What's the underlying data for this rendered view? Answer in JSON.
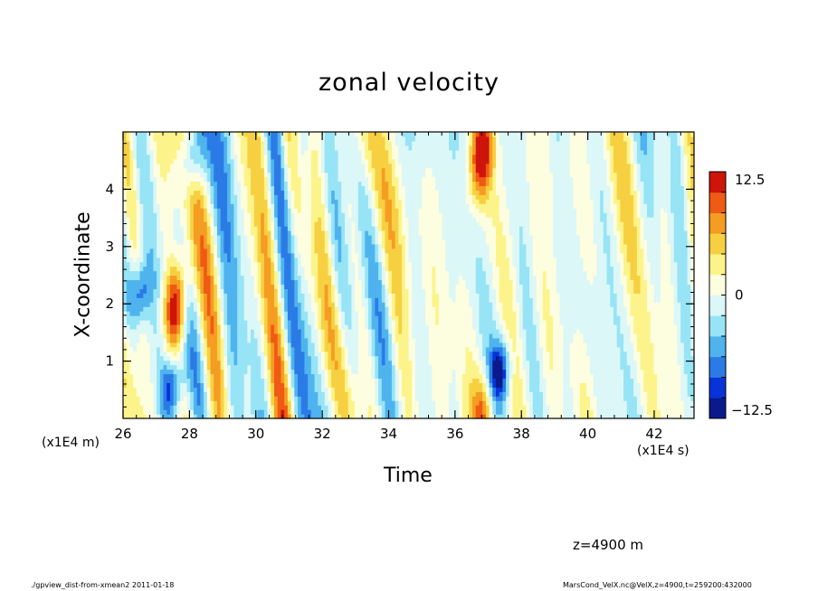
{
  "chart_data": {
    "type": "heatmap",
    "title": "zonal velocity",
    "xlabel": "Time",
    "ylabel": "X-coordinate",
    "x_unit": "(x1E4 s)",
    "y_unit": "(x1E4 m)",
    "xlim": [
      26,
      43.2
    ],
    "ylim": [
      0,
      5
    ],
    "x_ticks": [
      26,
      28,
      30,
      32,
      34,
      36,
      38,
      40,
      42
    ],
    "y_ticks": [
      1,
      2,
      3,
      4
    ],
    "colorbar": {
      "min": -12.5,
      "max": 12.5,
      "tick_labels": [
        "12.5",
        "0",
        "−12.5"
      ],
      "levels": [
        {
          "color": "#0a1a8c",
          "value": -12.5
        },
        {
          "color": "#0733d9",
          "value": -10
        },
        {
          "color": "#2b7be6",
          "value": -7.5
        },
        {
          "color": "#4fb3ee",
          "value": -5
        },
        {
          "color": "#97e4f6",
          "value": -2.5
        },
        {
          "color": "#dcf7f7",
          "value": -0.5
        },
        {
          "color": "#fdfde0",
          "value": 0.5
        },
        {
          "color": "#fcf48a",
          "value": 2.5
        },
        {
          "color": "#f7d042",
          "value": 5
        },
        {
          "color": "#f59c23",
          "value": 7.5
        },
        {
          "color": "#ef5a14",
          "value": 10
        },
        {
          "color": "#cf140a",
          "value": 12.5
        }
      ]
    },
    "features": [
      {
        "label": "warm streak",
        "t": 27.6,
        "x": 2.0,
        "u": 11.5
      },
      {
        "label": "warm streak",
        "t": 36.8,
        "x": 4.6,
        "u": 12.0
      },
      {
        "label": "warm streak",
        "t": 36.9,
        "x": 0.2,
        "u": 10.0
      },
      {
        "label": "cold streak",
        "t": 37.3,
        "x": 0.8,
        "u": -12.5
      },
      {
        "label": "cold streak",
        "t": 26.5,
        "x": 2.2,
        "u": -8.0
      },
      {
        "label": "cold streak",
        "t": 27.5,
        "x": 0.6,
        "u": -9.0
      },
      {
        "label": "cold streak",
        "t": 28.1,
        "x": 4.5,
        "u": -7.0
      }
    ]
  },
  "annotations": {
    "level": "z=4900  m",
    "footer_left": "./gpview_dist-from-xmean2  2011-01-18",
    "footer_right": "MarsCond_VelX.nc@VelX,z=4900,t=259200:432000"
  }
}
